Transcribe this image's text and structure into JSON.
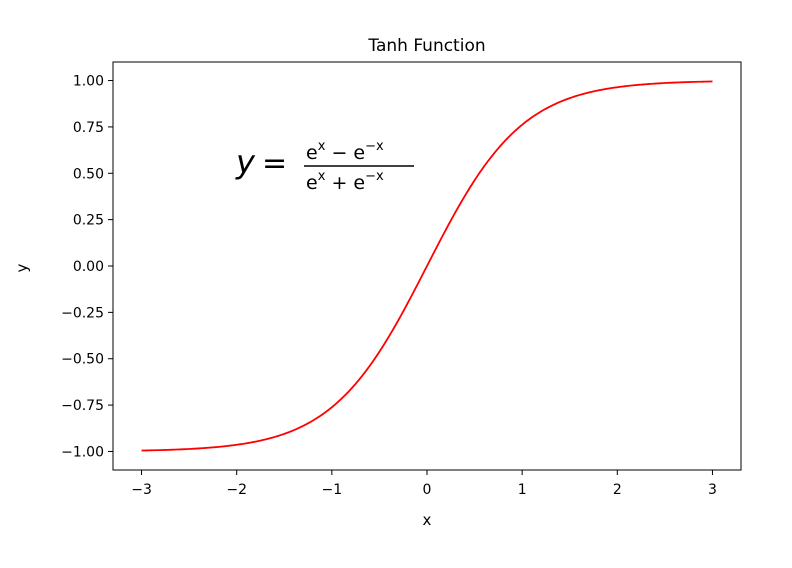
{
  "chart_data": {
    "type": "line",
    "title": "Tanh Function",
    "xlabel": "x",
    "ylabel": "y",
    "xlim": [
      -3.3,
      3.3
    ],
    "ylim": [
      -1.1,
      1.1
    ],
    "x_ticks": [
      -3,
      -2,
      -1,
      0,
      1,
      2,
      3
    ],
    "x_tick_labels": [
      "−3",
      "−2",
      "−1",
      "0",
      "1",
      "2",
      "3"
    ],
    "y_ticks": [
      1.0,
      0.75,
      0.5,
      0.25,
      0.0,
      -0.25,
      -0.5,
      -0.75,
      -1.0
    ],
    "y_tick_labels": [
      "1.00",
      "0.75",
      "0.50",
      "0.25",
      "0.00",
      "−0.25",
      "−0.50",
      "−0.75",
      "−1.00"
    ],
    "series": [
      {
        "function": "tanh",
        "x_range": [
          -3,
          3
        ],
        "color": "#ff0000",
        "x": [
          -3,
          -2.5,
          -2,
          -1.5,
          -1,
          -0.5,
          0,
          0.5,
          1,
          1.5,
          2,
          2.5,
          3
        ],
        "values": [
          -0.995,
          -0.987,
          -0.964,
          -0.905,
          -0.762,
          -0.462,
          0.0,
          0.462,
          0.762,
          0.905,
          0.964,
          0.987,
          0.995
        ]
      }
    ],
    "annotation": {
      "lhs": "y =",
      "numerator": "e^x − e^−x",
      "denominator": "e^x + e^−x"
    },
    "grid": false
  }
}
